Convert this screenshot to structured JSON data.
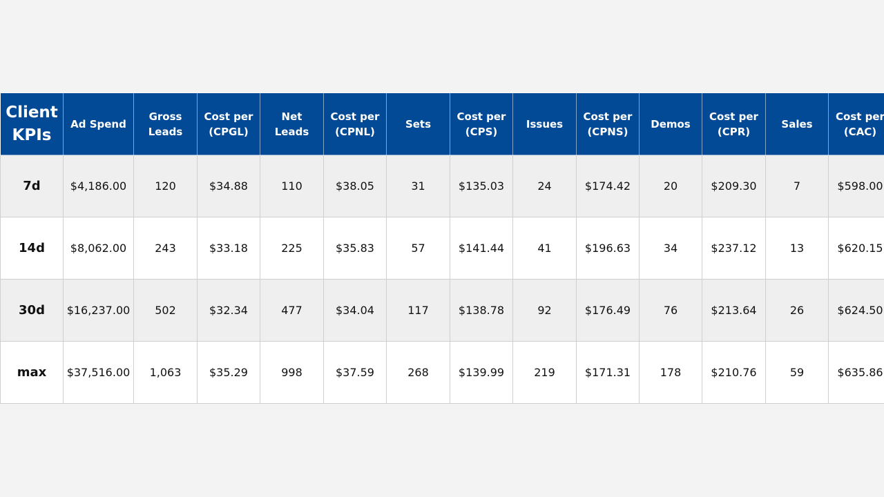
{
  "table": {
    "header": [
      "Client KPIs",
      "Ad Spend",
      "Gross Leads",
      "Cost per (CPGL)",
      "Net Leads",
      "Cost per (CPNL)",
      "Sets",
      "Cost per (CPS)",
      "Issues",
      "Cost per (CPNS)",
      "Demos",
      "Cost per (CPR)",
      "Sales",
      "Cost per (CAC)"
    ],
    "rows": [
      [
        "7d",
        "$4,186.00",
        "120",
        "$34.88",
        "110",
        "$38.05",
        "31",
        "$135.03",
        "24",
        "$174.42",
        "20",
        "$209.30",
        "7",
        "$598.00"
      ],
      [
        "14d",
        "$8,062.00",
        "243",
        "$33.18",
        "225",
        "$35.83",
        "57",
        "$141.44",
        "41",
        "$196.63",
        "34",
        "$237.12",
        "13",
        "$620.15"
      ],
      [
        "30d",
        "$16,237.00",
        "502",
        "$32.34",
        "477",
        "$34.04",
        "117",
        "$138.78",
        "92",
        "$176.49",
        "76",
        "$213.64",
        "26",
        "$624.50"
      ],
      [
        "max",
        "$37,516.00",
        "1,063",
        "$35.29",
        "998",
        "$37.59",
        "268",
        "$139.99",
        "219",
        "$171.31",
        "178",
        "$210.76",
        "59",
        "$635.86"
      ]
    ]
  }
}
